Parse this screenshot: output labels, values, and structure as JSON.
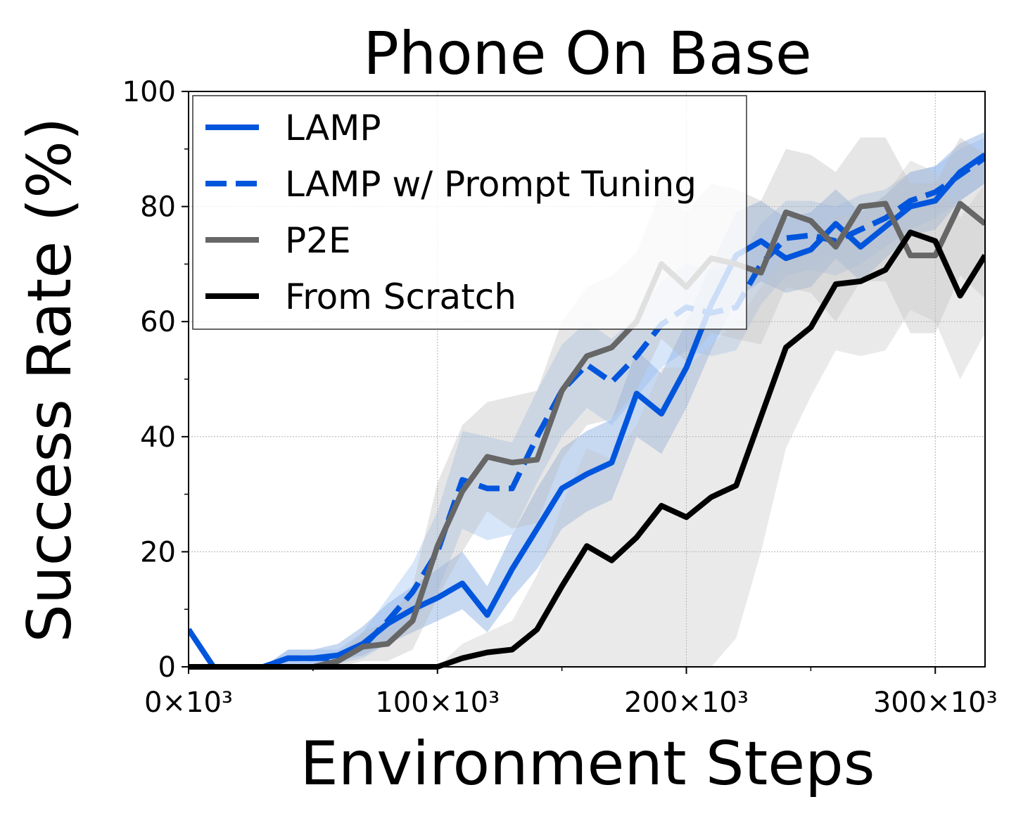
{
  "chart_data": {
    "type": "line",
    "title": "Phone On Base",
    "xlabel": "Environment Steps",
    "ylabel": "Success Rate (%)",
    "xlim": [
      0,
      320000
    ],
    "ylim": [
      0,
      100
    ],
    "xticks": [
      0,
      100000,
      200000,
      300000
    ],
    "xtick_labels": [
      "0×10³",
      "100×10³",
      "200×10³",
      "300×10³"
    ],
    "yticks": [
      0,
      20,
      40,
      60,
      80,
      100
    ],
    "ytick_labels": [
      "0",
      "20",
      "40",
      "60",
      "80",
      "100"
    ],
    "grid": true,
    "legend_position": "top-left",
    "x": [
      0,
      10000,
      20000,
      30000,
      40000,
      50000,
      60000,
      70000,
      80000,
      90000,
      100000,
      110000,
      120000,
      130000,
      140000,
      150000,
      160000,
      170000,
      180000,
      190000,
      200000,
      210000,
      220000,
      230000,
      240000,
      250000,
      260000,
      270000,
      280000,
      290000,
      300000,
      310000,
      320000
    ],
    "series": [
      {
        "name": "LAMP",
        "color": "#0055dd",
        "dash": "solid",
        "band_color": "#5f8fd8",
        "values": [
          6.5,
          0,
          0,
          0,
          1.5,
          1.5,
          2,
          4,
          7.5,
          10,
          12,
          14.5,
          9,
          17,
          24,
          31,
          33.5,
          35.5,
          47.5,
          44,
          52,
          63,
          71.5,
          74,
          71,
          72.5,
          77,
          73,
          76.5,
          80,
          81,
          86,
          89
        ],
        "lower": [
          6.5,
          0,
          0,
          0,
          0.5,
          0.5,
          1,
          2,
          4,
          6,
          8,
          10,
          6,
          12,
          17,
          24,
          27,
          29,
          40,
          37,
          45,
          55,
          64,
          67,
          65,
          66,
          71,
          67,
          71,
          75,
          76,
          81,
          84
        ],
        "upper": [
          6.5,
          0,
          0,
          0,
          3,
          3,
          4,
          7,
          11,
          14,
          17,
          20,
          14,
          23,
          31,
          38,
          41,
          43,
          55,
          51,
          60,
          70,
          79,
          81,
          78,
          79,
          83,
          79,
          82,
          86,
          87,
          91,
          93
        ]
      },
      {
        "name": "LAMP w/ Prompt Tuning",
        "color": "#0055dd",
        "dash": "dashed",
        "band_color": "#8fb6f0",
        "values": [
          0,
          0,
          0,
          0,
          1.5,
          1.5,
          1.5,
          3.5,
          8,
          13,
          20,
          32.5,
          31,
          31,
          40,
          48,
          52.5,
          49.5,
          54,
          59.5,
          62.5,
          61.5,
          62.5,
          70,
          74.5,
          75,
          74,
          76,
          78,
          81,
          82.5,
          85.5,
          88.5
        ],
        "lower": [
          0,
          0,
          0,
          0,
          0.5,
          0.5,
          0.5,
          1.5,
          4,
          8,
          13,
          24,
          22,
          23,
          32,
          40,
          45,
          42,
          47,
          52,
          55,
          54,
          55,
          63,
          68,
          69,
          68,
          70,
          73,
          76,
          78,
          81,
          84
        ],
        "upper": [
          0,
          0,
          0,
          0,
          3,
          3,
          3,
          6,
          12,
          18,
          27,
          41,
          40,
          39,
          48,
          56,
          60,
          57,
          61,
          67,
          70,
          69,
          70,
          77,
          81,
          81,
          80,
          82,
          83,
          86,
          87,
          90,
          92
        ]
      },
      {
        "name": "P2E",
        "color": "#666666",
        "dash": "solid",
        "band_color": "#b8b8b8",
        "values": [
          0,
          0,
          0,
          0,
          0,
          0,
          1,
          3.5,
          4,
          8,
          21,
          30.5,
          36.5,
          35.5,
          36,
          48,
          54,
          55.5,
          60,
          70,
          66,
          71,
          70,
          68.5,
          79,
          77.5,
          73,
          80,
          80.5,
          71.5,
          71.5,
          80.5,
          77
        ],
        "lower": [
          0,
          0,
          0,
          0,
          0,
          0,
          0,
          1,
          1,
          3,
          12,
          20,
          27,
          24,
          25,
          36,
          42,
          43,
          48,
          57,
          53,
          58,
          57,
          56,
          66,
          65,
          60,
          67,
          67,
          58,
          58,
          68,
          64
        ],
        "upper": [
          0,
          0,
          0,
          0,
          0,
          0,
          2,
          6,
          8,
          14,
          32,
          42,
          46,
          47,
          48,
          60,
          66,
          68,
          72,
          83,
          79,
          84,
          83,
          81,
          90,
          89,
          86,
          92,
          92,
          84,
          84,
          92,
          89
        ]
      },
      {
        "name": "From Scratch",
        "color": "#000000",
        "dash": "solid",
        "band_color": "#c4c4c4",
        "values": [
          0,
          0,
          0,
          0,
          0,
          0,
          0,
          0,
          0,
          0,
          0,
          1.5,
          2.5,
          3,
          6.5,
          14,
          21,
          18.5,
          22.5,
          28,
          26,
          29.5,
          31.5,
          43.5,
          55.5,
          59,
          66.5,
          67,
          69,
          75.5,
          74,
          64.5,
          71.5
        ],
        "lower": [
          0,
          0,
          0,
          0,
          0,
          0,
          0,
          0,
          0,
          0,
          0,
          0,
          0,
          0,
          0,
          0,
          0,
          0,
          0,
          0,
          0,
          0,
          5,
          20,
          38,
          47,
          55,
          54,
          55,
          62,
          60,
          50,
          58
        ],
        "upper": [
          0,
          0,
          0,
          0,
          0,
          0,
          0,
          0,
          0,
          0,
          0,
          4,
          6,
          8,
          16,
          28,
          38,
          36,
          42,
          52,
          52,
          56,
          60,
          66,
          72,
          72,
          78,
          79,
          82,
          88,
          86,
          78,
          84
        ]
      }
    ]
  }
}
